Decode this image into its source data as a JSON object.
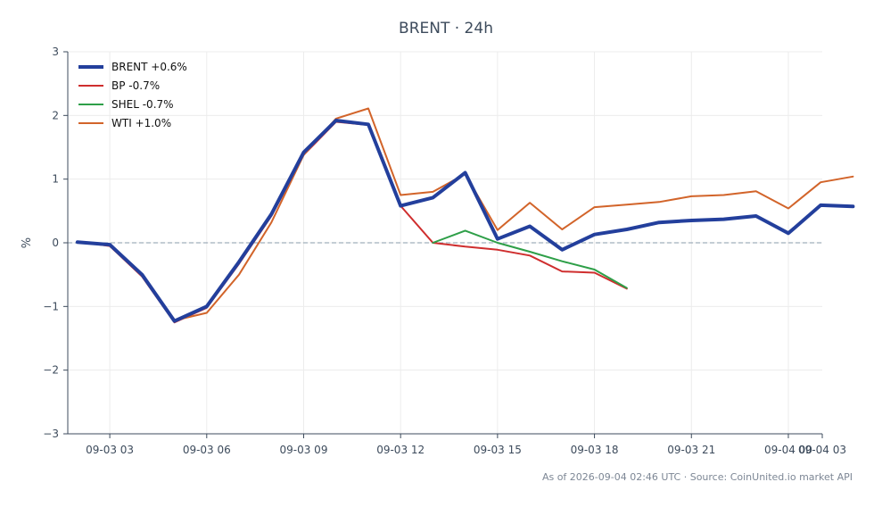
{
  "chart_data": {
    "type": "line",
    "title": "BRENT · 24h",
    "xlabel": "",
    "ylabel": "%",
    "ylim": [
      -3,
      3
    ],
    "xlim": [
      1.7,
      25.05
    ],
    "x_ticks": [
      {
        "x": 3,
        "label": "09-03 03"
      },
      {
        "x": 6,
        "label": "09-03 06"
      },
      {
        "x": 9,
        "label": "09-03 09"
      },
      {
        "x": 12,
        "label": "09-03 12"
      },
      {
        "x": 15,
        "label": "09-03 15"
      },
      {
        "x": 18,
        "label": "09-03 18"
      },
      {
        "x": 21,
        "label": "09-03 21"
      },
      {
        "x": 24,
        "label": "09-04 00"
      },
      {
        "x": 27,
        "label": "09-04 03"
      }
    ],
    "y_ticks": [
      {
        "v": 3,
        "label": "3"
      },
      {
        "v": 2,
        "label": "2"
      },
      {
        "v": 1,
        "label": "1"
      },
      {
        "v": 0,
        "label": "0"
      },
      {
        "v": -1,
        "label": "−1"
      },
      {
        "v": -2,
        "label": "−2"
      },
      {
        "v": -3,
        "label": "−3"
      }
    ],
    "grid": true,
    "zero_line": true,
    "legend_position": "top-left",
    "series": [
      {
        "name": "BRENT +0.6%",
        "color": "#233f9c",
        "width": 4,
        "x": [
          2,
          3,
          4,
          5,
          6,
          7,
          8,
          9,
          10,
          11,
          12,
          13,
          14,
          15,
          16,
          17,
          18,
          19,
          20,
          21,
          22,
          23,
          24,
          25,
          26
        ],
        "values": [
          0.01,
          -0.03,
          -0.5,
          -1.23,
          -1.0,
          -0.3,
          0.45,
          1.42,
          1.92,
          1.86,
          0.58,
          0.71,
          1.1,
          0.06,
          0.26,
          -0.11,
          0.13,
          0.21,
          0.32,
          0.35,
          0.37,
          0.42,
          0.15,
          0.59,
          0.57
        ]
      },
      {
        "name": "BP -0.7%",
        "color": "#cf2e2e",
        "width": 2,
        "x": [
          2,
          3,
          4,
          5,
          6,
          7,
          8,
          9,
          10,
          11,
          12,
          13,
          14,
          15,
          16,
          17,
          18,
          19
        ],
        "values": [
          0.02,
          -0.05,
          -0.53,
          -1.25,
          -1.02,
          -0.33,
          0.42,
          1.38,
          1.9,
          1.85,
          0.58,
          0.0,
          -0.06,
          -0.11,
          -0.2,
          -0.45,
          -0.47,
          -0.72
        ]
      },
      {
        "name": "SHEL -0.7%",
        "color": "#2e9f48",
        "width": 2,
        "x": [
          13,
          14,
          15,
          16,
          17,
          18,
          19
        ],
        "values": [
          0.0,
          0.19,
          0.0,
          -0.14,
          -0.29,
          -0.42,
          -0.71
        ]
      },
      {
        "name": "WTI +1.0%",
        "color": "#d2642a",
        "width": 2,
        "x": [
          2,
          3,
          4,
          5,
          6,
          7,
          8,
          9,
          10,
          11,
          12,
          13,
          14,
          15,
          16,
          17,
          18,
          19,
          20,
          21,
          22,
          23,
          24,
          25,
          26
        ],
        "values": [
          0.02,
          -0.03,
          -0.52,
          -1.22,
          -1.1,
          -0.5,
          0.32,
          1.38,
          1.95,
          2.11,
          0.75,
          0.8,
          1.08,
          0.2,
          0.63,
          0.21,
          0.56,
          0.6,
          0.64,
          0.73,
          0.75,
          0.81,
          0.54,
          0.95,
          1.04
        ]
      }
    ],
    "footnote": "As of 2026-09-04 02:46 UTC · Source: CoinUnited.io market API"
  }
}
